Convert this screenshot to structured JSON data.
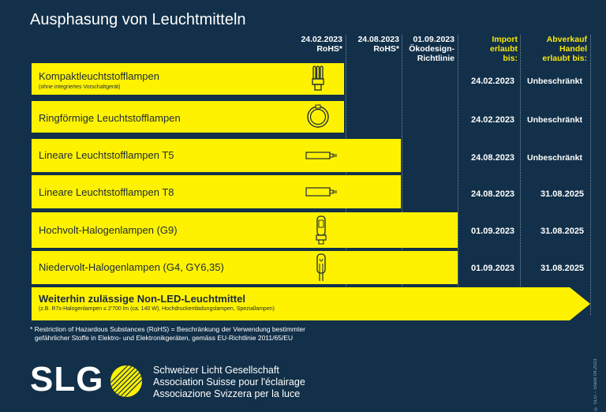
{
  "title": "Ausphasung von Leuchtmitteln",
  "columns": [
    {
      "lines": [
        "24.02.2023",
        "RoHS*"
      ]
    },
    {
      "lines": [
        "24.08.2023",
        "RoHS*"
      ]
    },
    {
      "lines": [
        "01.09.2023",
        "Ökodesign-",
        "Richtlinie"
      ]
    },
    {
      "lines": [
        "Import",
        "erlaubt",
        "bis:"
      ]
    },
    {
      "lines": [
        "Abverkauf",
        "Handel",
        "erlaubt bis:"
      ]
    }
  ],
  "rows": [
    {
      "label": "Kompaktleuchtstofflampen",
      "sub": "(ohne integriertes Vorschaltgerät)",
      "icon": "compact-fluorescent-icon",
      "import": "24.02.2023",
      "sale": "Unbeschränkt"
    },
    {
      "label": "Ringförmige Leuchtstofflampen",
      "sub": "",
      "icon": "ring-lamp-icon",
      "import": "24.02.2023",
      "sale": "Unbeschränkt"
    },
    {
      "label": "Lineare Leuchtstofflampen T5",
      "sub": "",
      "icon": "tube-lamp-icon",
      "import": "24.08.2023",
      "sale": "Unbeschränkt"
    },
    {
      "label": "Lineare Leuchtstofflampen T8",
      "sub": "",
      "icon": "tube-lamp-icon",
      "import": "24.08.2023",
      "sale": "31.08.2025"
    },
    {
      "label": "Hochvolt-Halogenlampen (G9)",
      "sub": "",
      "icon": "halogen-g9-icon",
      "import": "01.09.2023",
      "sale": "31.08.2025"
    },
    {
      "label": "Niedervolt-Halogenlampen (G4, GY6,35)",
      "sub": "",
      "icon": "halogen-g4-icon",
      "import": "01.09.2023",
      "sale": "31.08.2025"
    }
  ],
  "arrow": {
    "label": "Weiterhin zulässige Non-LED-Leuchtmittel",
    "sub": "(z.B. R7s-Halogenlampen ≤ 2'700 lm (ca. 140 W), Hochdruckentladungslampen, Speziallampen)"
  },
  "footnote": {
    "line1": "* Restriction of Hazardous Substances (RoHS) = Beschränkung der Verwendung bestimmter",
    "line2": "gefährlicher Stoffe in Elektro- und Elektronikgeräten, gemäss EU-Richtlinie 2011/65/EU"
  },
  "logo": {
    "text": "SLG"
  },
  "org": {
    "de": "Schweizer Licht Gesellschaft",
    "fr": "Association Suisse pour l'éclairage",
    "it": "Associazione Svizzera per la luce"
  },
  "side_text": "© SLG – Stand 04.2023",
  "colors": {
    "background": "#123049",
    "bar": "#fff200",
    "header_accent": "#f7e70b"
  }
}
